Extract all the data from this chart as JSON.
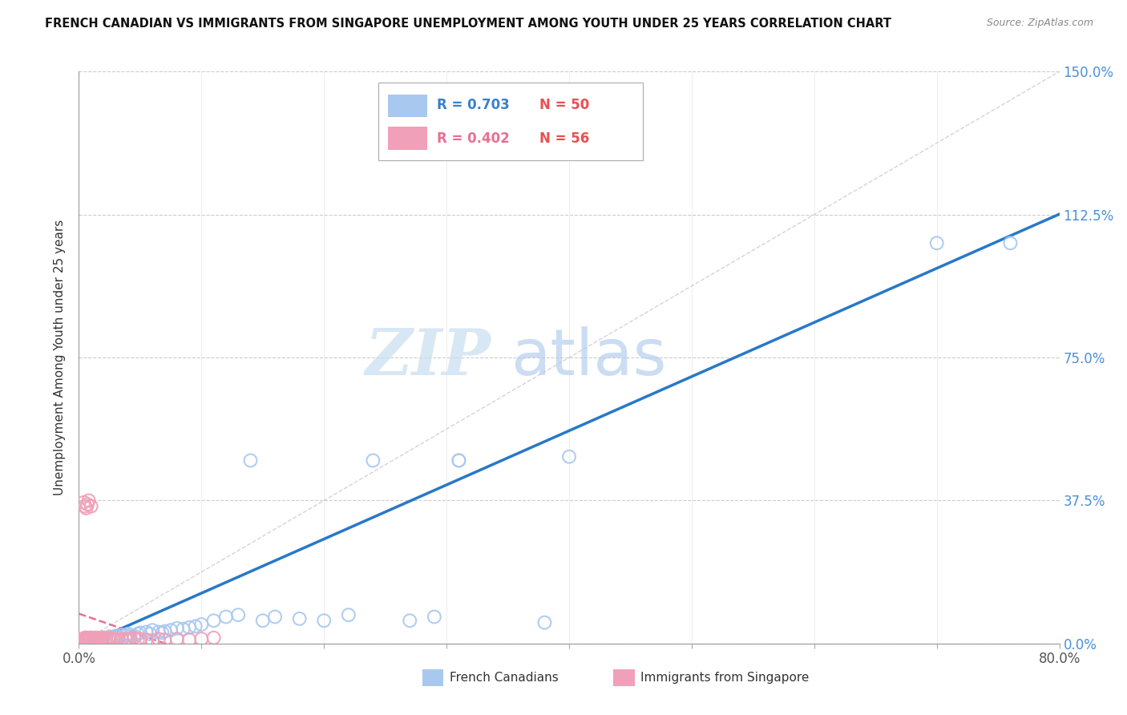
{
  "title": "FRENCH CANADIAN VS IMMIGRANTS FROM SINGAPORE UNEMPLOYMENT AMONG YOUTH UNDER 25 YEARS CORRELATION CHART",
  "source": "Source: ZipAtlas.com",
  "ylabel": "Unemployment Among Youth under 25 years",
  "xlim": [
    0,
    0.8
  ],
  "ylim": [
    0,
    1.5
  ],
  "xticks": [
    0.0,
    0.1,
    0.2,
    0.3,
    0.4,
    0.5,
    0.6,
    0.7,
    0.8
  ],
  "xticklabels": [
    "0.0%",
    "",
    "",
    "",
    "",
    "",
    "",
    "",
    "80.0%"
  ],
  "yticks": [
    0.0,
    0.375,
    0.75,
    1.125,
    1.5
  ],
  "yticklabels": [
    "0.0%",
    "37.5%",
    "75.0%",
    "112.5%",
    "150.0%"
  ],
  "watermark_zip": "ZIP",
  "watermark_atlas": "atlas",
  "legend_r1_val": "0.703",
  "legend_n1_val": "50",
  "legend_r2_val": "0.402",
  "legend_n2_val": "56",
  "blue_color": "#a8c8f0",
  "pink_color": "#f0a0b8",
  "blue_line_color": "#2878c8",
  "pink_line_color": "#e87090",
  "ref_line_color": "#c8c8d8",
  "background_color": "#ffffff",
  "blue_scatter_x": [
    0.005,
    0.008,
    0.01,
    0.012,
    0.014,
    0.016,
    0.018,
    0.02,
    0.022,
    0.025,
    0.028,
    0.03,
    0.032,
    0.035,
    0.038,
    0.04,
    0.042,
    0.045,
    0.048,
    0.05,
    0.055,
    0.058,
    0.06,
    0.065,
    0.068,
    0.07,
    0.075,
    0.08,
    0.085,
    0.09,
    0.095,
    0.1,
    0.11,
    0.12,
    0.13,
    0.14,
    0.15,
    0.16,
    0.18,
    0.2,
    0.22,
    0.24,
    0.27,
    0.29,
    0.31,
    0.31,
    0.38,
    0.4,
    0.7,
    0.76
  ],
  "blue_scatter_y": [
    0.01,
    0.008,
    0.012,
    0.01,
    0.008,
    0.012,
    0.01,
    0.015,
    0.012,
    0.018,
    0.015,
    0.02,
    0.018,
    0.022,
    0.02,
    0.025,
    0.022,
    0.02,
    0.025,
    0.028,
    0.03,
    0.025,
    0.035,
    0.03,
    0.028,
    0.032,
    0.035,
    0.04,
    0.038,
    0.042,
    0.045,
    0.05,
    0.06,
    0.07,
    0.075,
    0.48,
    0.06,
    0.07,
    0.065,
    0.06,
    0.075,
    0.48,
    0.06,
    0.07,
    0.48,
    0.48,
    0.055,
    0.49,
    1.05,
    1.05
  ],
  "pink_scatter_x": [
    0.002,
    0.003,
    0.004,
    0.005,
    0.005,
    0.006,
    0.006,
    0.007,
    0.007,
    0.008,
    0.008,
    0.009,
    0.009,
    0.01,
    0.01,
    0.011,
    0.012,
    0.012,
    0.013,
    0.014,
    0.015,
    0.015,
    0.016,
    0.017,
    0.018,
    0.018,
    0.019,
    0.02,
    0.022,
    0.024,
    0.025,
    0.026,
    0.028,
    0.03,
    0.032,
    0.035,
    0.038,
    0.04,
    0.042,
    0.045,
    0.048,
    0.05,
    0.055,
    0.06,
    0.065,
    0.07,
    0.08,
    0.09,
    0.1,
    0.11,
    0.004,
    0.005,
    0.006,
    0.007,
    0.008,
    0.01
  ],
  "pink_scatter_y": [
    0.01,
    0.012,
    0.008,
    0.015,
    0.012,
    0.01,
    0.015,
    0.01,
    0.012,
    0.008,
    0.012,
    0.015,
    0.01,
    0.012,
    0.015,
    0.01,
    0.012,
    0.008,
    0.015,
    0.01,
    0.012,
    0.015,
    0.01,
    0.012,
    0.008,
    0.015,
    0.012,
    0.015,
    0.012,
    0.01,
    0.015,
    0.012,
    0.01,
    0.008,
    0.012,
    0.01,
    0.012,
    0.01,
    0.012,
    0.015,
    0.01,
    0.012,
    0.01,
    0.008,
    0.012,
    0.01,
    0.012,
    0.01,
    0.012,
    0.015,
    0.37,
    0.36,
    0.355,
    0.365,
    0.375,
    0.36
  ]
}
